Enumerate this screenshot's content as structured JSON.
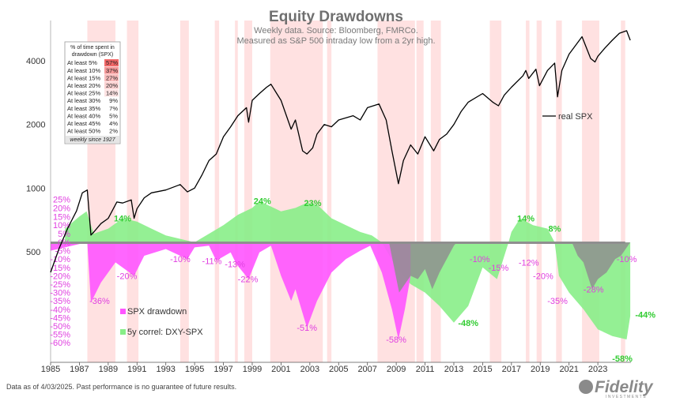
{
  "chart_data": {
    "type": "line",
    "title": "Equity Drawdowns",
    "subtitle_lines": [
      "Weekly data.  Source: Bloomberg, FMRCo.",
      "Measured as S&P 500 intraday low from a 2yr high."
    ],
    "x_ticks": [
      "1985",
      "1987",
      "1989",
      "1991",
      "1993",
      "1995",
      "1997",
      "1999",
      "2001",
      "2003",
      "2005",
      "2007",
      "2009",
      "2011",
      "2013",
      "2015",
      "2017",
      "2019",
      "2021",
      "2023"
    ],
    "y_ticks": [
      "500",
      "1000",
      "2000",
      "4000"
    ],
    "y_scale": "log",
    "pct_ticks": [
      "25%",
      "20%",
      "15%",
      "10%",
      "5%",
      "0%",
      "-5%",
      "-10%",
      "-15%",
      "-20%",
      "-25%",
      "-30%",
      "-35%",
      "-40%",
      "-45%",
      "-50%",
      "-55%",
      "-60%"
    ],
    "xlim": [
      1985,
      2025.3
    ],
    "pct_range": [
      -60,
      25
    ],
    "series": [
      {
        "name": "real SPX",
        "color": "#000000",
        "points": [
          [
            1985.0,
            400
          ],
          [
            1985.6,
            520
          ],
          [
            1986.2,
            650
          ],
          [
            1986.8,
            780
          ],
          [
            1987.2,
            950
          ],
          [
            1987.55,
            980
          ],
          [
            1987.8,
            600
          ],
          [
            1988.0,
            620
          ],
          [
            1988.5,
            680
          ],
          [
            1989.0,
            720
          ],
          [
            1989.6,
            860
          ],
          [
            1990.0,
            850
          ],
          [
            1990.6,
            880
          ],
          [
            1990.8,
            720
          ],
          [
            1991.0,
            800
          ],
          [
            1991.5,
            900
          ],
          [
            1992.0,
            950
          ],
          [
            1993.0,
            980
          ],
          [
            1994.0,
            1040
          ],
          [
            1994.5,
            960
          ],
          [
            1995.0,
            1000
          ],
          [
            1995.5,
            1150
          ],
          [
            1996.0,
            1350
          ],
          [
            1996.5,
            1450
          ],
          [
            1997.0,
            1750
          ],
          [
            1997.5,
            1950
          ],
          [
            1998.0,
            2200
          ],
          [
            1998.6,
            2400
          ],
          [
            1998.75,
            2050
          ],
          [
            1999.0,
            2600
          ],
          [
            1999.5,
            2800
          ],
          [
            2000.0,
            3000
          ],
          [
            2000.3,
            3100
          ],
          [
            2000.7,
            2800
          ],
          [
            2001.0,
            2600
          ],
          [
            2001.7,
            1900
          ],
          [
            2002.0,
            2100
          ],
          [
            2002.5,
            1500
          ],
          [
            2002.8,
            1450
          ],
          [
            2003.2,
            1550
          ],
          [
            2003.5,
            1800
          ],
          [
            2004.0,
            2000
          ],
          [
            2004.5,
            1950
          ],
          [
            2005.0,
            2100
          ],
          [
            2006.0,
            2200
          ],
          [
            2006.5,
            2100
          ],
          [
            2007.0,
            2400
          ],
          [
            2007.8,
            2500
          ],
          [
            2008.3,
            2100
          ],
          [
            2008.7,
            1500
          ],
          [
            2009.15,
            1050
          ],
          [
            2009.5,
            1350
          ],
          [
            2010.0,
            1600
          ],
          [
            2010.5,
            1450
          ],
          [
            2011.0,
            1750
          ],
          [
            2011.6,
            1500
          ],
          [
            2012.0,
            1700
          ],
          [
            2012.5,
            1800
          ],
          [
            2013.0,
            2000
          ],
          [
            2013.5,
            2300
          ],
          [
            2014.0,
            2550
          ],
          [
            2015.0,
            2800
          ],
          [
            2015.7,
            2550
          ],
          [
            2016.1,
            2450
          ],
          [
            2016.5,
            2750
          ],
          [
            2017.0,
            3000
          ],
          [
            2017.8,
            3400
          ],
          [
            2018.0,
            3600
          ],
          [
            2018.2,
            3300
          ],
          [
            2018.7,
            3650
          ],
          [
            2018.95,
            3050
          ],
          [
            2019.5,
            3600
          ],
          [
            2020.0,
            3900
          ],
          [
            2020.2,
            2700
          ],
          [
            2020.5,
            3600
          ],
          [
            2021.0,
            4300
          ],
          [
            2021.9,
            5200
          ],
          [
            2022.5,
            4100
          ],
          [
            2022.8,
            3950
          ],
          [
            2023.0,
            4200
          ],
          [
            2023.5,
            4600
          ],
          [
            2024.0,
            5000
          ],
          [
            2024.5,
            5400
          ],
          [
            2025.0,
            5550
          ],
          [
            2025.25,
            5000
          ]
        ]
      },
      {
        "name": "SPX drawdown",
        "color": "#ff55ff",
        "points": [
          [
            1985.0,
            -5
          ],
          [
            1986.0,
            -3
          ],
          [
            1987.0,
            -1
          ],
          [
            1987.55,
            0
          ],
          [
            1987.8,
            -36
          ],
          [
            1988.5,
            -24
          ],
          [
            1989.5,
            -12
          ],
          [
            1990.8,
            -20
          ],
          [
            1991.5,
            -8
          ],
          [
            1993.0,
            -4
          ],
          [
            1994.5,
            -10
          ],
          [
            1995.0,
            -3
          ],
          [
            1996.0,
            -2
          ],
          [
            1996.5,
            -11
          ],
          [
            1997.5,
            -6
          ],
          [
            1997.9,
            -13
          ],
          [
            1998.75,
            -22
          ],
          [
            1999.5,
            -6
          ],
          [
            2000.3,
            -2
          ],
          [
            2001.0,
            -20
          ],
          [
            2001.7,
            -35
          ],
          [
            2002.0,
            -28
          ],
          [
            2002.8,
            -51
          ],
          [
            2003.5,
            -35
          ],
          [
            2004.5,
            -18
          ],
          [
            2005.5,
            -10
          ],
          [
            2006.5,
            -5
          ],
          [
            2007.2,
            -2
          ],
          [
            2008.0,
            -18
          ],
          [
            2008.7,
            -40
          ],
          [
            2009.15,
            -58
          ],
          [
            2009.6,
            -40
          ],
          [
            2010.0,
            -20
          ]
        ]
      },
      {
        "name": "5y correl: DXY-SPX",
        "color": "#88ee88",
        "points": [
          [
            1986.0,
            8
          ],
          [
            1987.0,
            15
          ],
          [
            1987.5,
            18
          ],
          [
            1988.0,
            5
          ],
          [
            1989.0,
            8
          ],
          [
            1990.0,
            14
          ],
          [
            1991.0,
            12
          ],
          [
            1992.0,
            8
          ],
          [
            1993.0,
            4
          ],
          [
            1994.0,
            2
          ],
          [
            1995.0,
            0
          ],
          [
            1996.0,
            5
          ],
          [
            1997.0,
            10
          ],
          [
            1998.0,
            16
          ],
          [
            1999.0,
            20
          ],
          [
            1999.5,
            24
          ],
          [
            2000.0,
            22
          ],
          [
            2001.0,
            18
          ],
          [
            2002.0,
            20
          ],
          [
            2002.8,
            23
          ],
          [
            2003.5,
            22
          ],
          [
            2004.5,
            14
          ],
          [
            2005.5,
            10
          ],
          [
            2006.5,
            6
          ],
          [
            2007.3,
            4
          ],
          [
            2008.0,
            0
          ],
          [
            2009.0,
            -15
          ],
          [
            2010.0,
            -25
          ],
          [
            2011.0,
            -30
          ],
          [
            2012.0,
            -38
          ],
          [
            2013.0,
            -48
          ],
          [
            2014.0,
            -38
          ],
          [
            2015.0,
            -15
          ],
          [
            2016.0,
            -22
          ],
          [
            2016.8,
            0
          ],
          [
            2017.0,
            6
          ],
          [
            2017.6,
            14
          ],
          [
            2018.5,
            10
          ],
          [
            2019.5,
            8
          ],
          [
            2020.0,
            0
          ],
          [
            2020.3,
            -20
          ],
          [
            2021.0,
            -30
          ],
          [
            2022.0,
            -40
          ],
          [
            2023.0,
            -52
          ],
          [
            2024.0,
            -56
          ],
          [
            2025.0,
            -58
          ],
          [
            2025.25,
            -44
          ]
        ]
      }
    ],
    "annotations_pink": [
      "-36%",
      "-20%",
      "-10%",
      "-11%",
      "-13%",
      "-22%",
      "-51%",
      "-58%",
      "-10%",
      "-15%",
      "-12%",
      "-20%",
      "-35%",
      "-28%",
      "-10%"
    ],
    "annotations_green": [
      "14%",
      "24%",
      "23%",
      "-48%",
      "14%",
      "8%",
      "-44%",
      "-58%"
    ],
    "legend": [
      {
        "label": "SPX drawdown",
        "color": "#ff55ff"
      },
      {
        "label": "5y correl: DXY-SPX",
        "color": "#88ee88"
      }
    ],
    "series_label": "real SPX",
    "time_in_drawdown": {
      "header": [
        "% of time spent in",
        "drawdown (SPX)"
      ],
      "rows": [
        {
          "label": "At least 5%",
          "value": "57%"
        },
        {
          "label": "At least 10%",
          "value": "37%"
        },
        {
          "label": "At least 15%",
          "value": "27%"
        },
        {
          "label": "At least 20%",
          "value": "20%"
        },
        {
          "label": "At least 25%",
          "value": "14%"
        },
        {
          "label": "At least 30%",
          "value": "9%"
        },
        {
          "label": "At least 35%",
          "value": "7%"
        },
        {
          "label": "At least 40%",
          "value": "5%"
        },
        {
          "label": "At least 45%",
          "value": "4%"
        },
        {
          "label": "At least 50%",
          "value": "2%"
        }
      ],
      "footer": "weekly since 1927"
    },
    "shaded_periods_color": "#ffb8b8"
  },
  "footer": {
    "disclaimer": "Data as of 4/03/2025. Past performance is no guarantee of future results.",
    "brand": "Fidelity",
    "brand_sub": "INVESTMENTS"
  }
}
